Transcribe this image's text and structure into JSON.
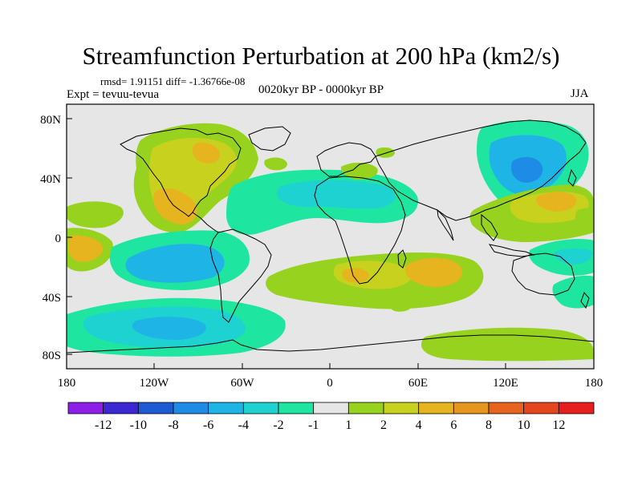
{
  "title": "Streamfunction Perturbation at 200 hPa (km2/s)",
  "stats_line": "rmsd= 1.91151 diff= -1.36766e-08",
  "expt_line": "Expt = tevuu-tevua",
  "period_line": "0020kyr BP - 0000kyr BP",
  "season": "JJA",
  "y_ticks": [
    "80N",
    "40N",
    "0",
    "40S",
    "80S"
  ],
  "x_ticks": [
    "180",
    "120W",
    "60W",
    "0",
    "60E",
    "120E",
    "180"
  ],
  "colorbar": {
    "labels": [
      "-12",
      "-10",
      "-8",
      "-6",
      "-4",
      "-2",
      "-1",
      "1",
      "2",
      "4",
      "6",
      "8",
      "10",
      "12"
    ],
    "colors": [
      "#8c1ee8",
      "#3c28d2",
      "#1e5ad2",
      "#1e8ce6",
      "#1eb4e6",
      "#1ed2d2",
      "#1ee6a0",
      "#e6e6e6",
      "#96d21e",
      "#c8d21e",
      "#e6b41e",
      "#e6961e",
      "#e6641e",
      "#e6461e",
      "#e61e1e"
    ]
  }
}
